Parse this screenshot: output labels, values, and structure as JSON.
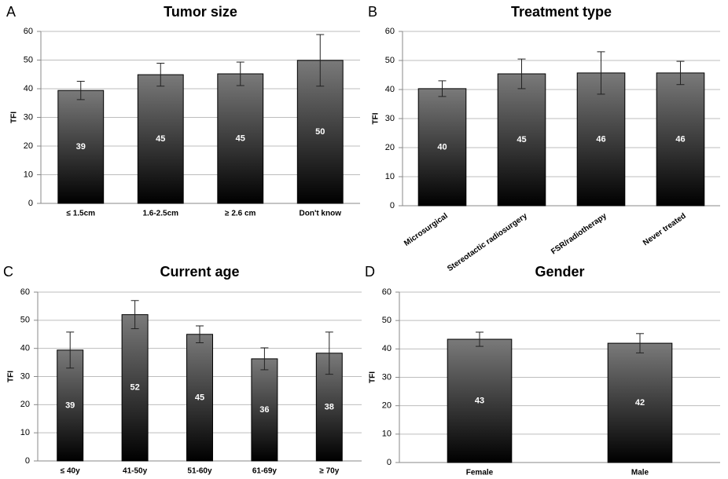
{
  "chart_data": [
    {
      "type": "bar",
      "label": "A",
      "title": "Tumor size",
      "y_label": "TFI",
      "categories": [
        "≤ 1.5cm",
        "1.6-2.5cm",
        "≥ 2.6 cm",
        "Don't know"
      ],
      "values": [
        39.4,
        44.9,
        45.2,
        49.9
      ],
      "errors": [
        3.2,
        4,
        4.1,
        9
      ],
      "value_labels": [
        "39",
        "45",
        "45",
        "50"
      ],
      "ylim": [
        0,
        60
      ],
      "yticks": [
        0,
        10,
        20,
        30,
        40,
        50,
        60
      ],
      "grid": true,
      "color": "#7a7a7a"
    },
    {
      "type": "bar",
      "label": "B",
      "title": "Treatment type",
      "y_label": "TFI",
      "categories": [
        "Microsurgical",
        "Stereotactic radiosurgery",
        "FSR/radiotherapy",
        "Never treated"
      ],
      "values": [
        40.3,
        45.4,
        45.7,
        45.7
      ],
      "errors": [
        2.7,
        5.1,
        7.3,
        4
      ],
      "value_labels": [
        "40",
        "45",
        "46",
        "46"
      ],
      "ylim": [
        0,
        60
      ],
      "yticks": [
        0,
        10,
        20,
        30,
        40,
        50,
        60
      ],
      "grid": true,
      "color": "#7a7a7a"
    },
    {
      "type": "bar",
      "label": "C",
      "title": "Current age",
      "y_label": "TFI",
      "categories": [
        "≤ 40y",
        "41-50y",
        "51-60y",
        "61-69y",
        "≥ 70y"
      ],
      "values": [
        39.4,
        52,
        45,
        36.3,
        38.3
      ],
      "errors": [
        6.4,
        5,
        3,
        3.9,
        7.5
      ],
      "value_labels": [
        "39",
        "52",
        "45",
        "36",
        "38"
      ],
      "ylim": [
        0,
        60
      ],
      "yticks": [
        0,
        10,
        20,
        30,
        40,
        50,
        60
      ],
      "grid": true,
      "color": "#7a7a7a"
    },
    {
      "type": "bar",
      "label": "D",
      "title": "Gender",
      "y_label": "TFI",
      "categories": [
        "Female",
        "Male"
      ],
      "values": [
        43.4,
        42
      ],
      "errors": [
        2.5,
        3.4
      ],
      "value_labels": [
        "43",
        "42"
      ],
      "ylim": [
        0,
        60
      ],
      "yticks": [
        0,
        10,
        20,
        30,
        40,
        50,
        60
      ],
      "grid": true,
      "color": "#7a7a7a"
    }
  ]
}
